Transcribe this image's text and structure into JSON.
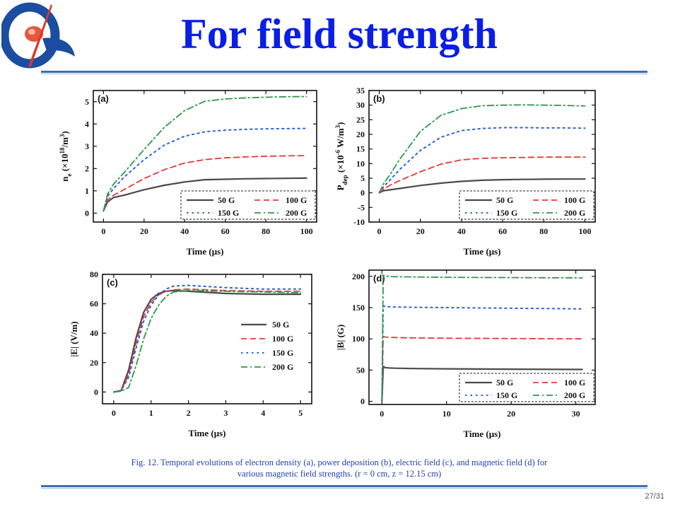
{
  "slide": {
    "title": "For field strength",
    "caption_line1": "Fig. 12. Temporal evolutions of electron density (a), power deposition (b), electric field (c), and magnetic field (d) for",
    "caption_line2": "various magnetic field strengths. (r = 0 cm, z = 12.15 cm)",
    "page_number": "27/31"
  },
  "colors": {
    "title": "#0a1ee6",
    "rule": "#3a6fb5",
    "caption": "#2540a8",
    "series_50G": "#4a4a4a",
    "series_100G": "#e63a3a",
    "series_150G": "#2e63d6",
    "series_200G": "#2a9a4a"
  },
  "chart_data": [
    {
      "id": "a",
      "panel_label": "(a)",
      "type": "line",
      "xlabel": "Time  (μs)",
      "ylabel": "n_e (×10^18/m^3)",
      "ylabel_parts": [
        "n",
        "e",
        " (×10",
        "18",
        "/m",
        "3",
        ")"
      ],
      "xlim": [
        -5,
        105
      ],
      "ylim": [
        -0.4,
        5.5
      ],
      "xticks": [
        0,
        20,
        40,
        60,
        80,
        100
      ],
      "yticks": [
        0,
        1,
        2,
        3,
        4,
        5
      ],
      "legend": [
        "50 G",
        "100 G",
        "150 G",
        "200 G"
      ],
      "legend_position": "bottom-right",
      "series": [
        {
          "name": "50 G",
          "x": [
            0,
            2,
            5,
            10,
            20,
            30,
            40,
            50,
            60,
            70,
            80,
            90,
            100
          ],
          "values": [
            0.1,
            0.5,
            0.7,
            0.8,
            1.05,
            1.25,
            1.4,
            1.5,
            1.52,
            1.54,
            1.55,
            1.56,
            1.57
          ]
        },
        {
          "name": "100 G",
          "x": [
            0,
            2,
            5,
            10,
            20,
            30,
            40,
            50,
            60,
            70,
            80,
            90,
            100
          ],
          "values": [
            0.1,
            0.6,
            0.8,
            1.05,
            1.55,
            1.95,
            2.25,
            2.4,
            2.48,
            2.52,
            2.55,
            2.57,
            2.58
          ]
        },
        {
          "name": "150 G",
          "x": [
            0,
            2,
            5,
            10,
            20,
            30,
            40,
            50,
            60,
            70,
            80,
            90,
            100
          ],
          "values": [
            0.1,
            0.75,
            1.1,
            1.6,
            2.4,
            3.05,
            3.45,
            3.65,
            3.72,
            3.76,
            3.78,
            3.79,
            3.8
          ]
        },
        {
          "name": "200 G",
          "x": [
            0,
            2,
            5,
            10,
            20,
            30,
            40,
            50,
            60,
            70,
            80,
            90,
            100
          ],
          "values": [
            0.1,
            0.85,
            1.3,
            1.8,
            2.85,
            3.85,
            4.6,
            5.02,
            5.12,
            5.17,
            5.2,
            5.22,
            5.23
          ]
        }
      ]
    },
    {
      "id": "b",
      "panel_label": "(b)",
      "type": "line",
      "xlabel": "Time  (μs)",
      "ylabel": "P_dep (×10^-6 W/m^3)",
      "ylabel_parts": [
        "P",
        "dep",
        " (×10",
        "-6",
        " W/m",
        "3",
        ")"
      ],
      "xlim": [
        -5,
        105
      ],
      "ylim": [
        -10,
        35
      ],
      "xticks": [
        0,
        20,
        40,
        60,
        80,
        100
      ],
      "yticks": [
        -10,
        -5,
        0,
        5,
        10,
        15,
        20,
        25,
        30,
        35
      ],
      "legend": [
        "50 G",
        "100 G",
        "150 G",
        "200 G"
      ],
      "legend_position": "bottom-right",
      "series": [
        {
          "name": "50 G",
          "x": [
            0,
            2,
            5,
            10,
            20,
            30,
            40,
            50,
            60,
            70,
            80,
            90,
            100
          ],
          "values": [
            0,
            0.7,
            1.0,
            1.5,
            2.5,
            3.3,
            3.9,
            4.3,
            4.5,
            4.6,
            4.65,
            4.7,
            4.7
          ]
        },
        {
          "name": "100 G",
          "x": [
            0,
            2,
            5,
            10,
            20,
            30,
            40,
            50,
            60,
            70,
            80,
            90,
            100
          ],
          "values": [
            0,
            1.2,
            2.5,
            4.2,
            7.2,
            9.8,
            11.3,
            11.8,
            12.0,
            12.1,
            12.2,
            12.2,
            12.2
          ]
        },
        {
          "name": "150 G",
          "x": [
            0,
            2,
            5,
            10,
            20,
            30,
            40,
            50,
            60,
            70,
            80,
            90,
            100
          ],
          "values": [
            0,
            2.0,
            4.2,
            8.0,
            14.5,
            19.0,
            21.3,
            22.0,
            22.3,
            22.3,
            22.2,
            22.2,
            22.1
          ]
        },
        {
          "name": "200 G",
          "x": [
            0,
            2,
            5,
            10,
            20,
            30,
            40,
            50,
            60,
            70,
            80,
            90,
            100
          ],
          "values": [
            0,
            3.0,
            6.0,
            11.5,
            21.0,
            26.5,
            28.8,
            29.8,
            30.0,
            30.1,
            30.0,
            29.9,
            29.7
          ]
        }
      ]
    },
    {
      "id": "c",
      "panel_label": "(c)",
      "type": "line",
      "xlabel": "Time  (μs)",
      "ylabel": "|E|  (V/m)",
      "ylabel_parts": [
        "|E|  (V/m)"
      ],
      "xlim": [
        -0.3,
        5.3
      ],
      "ylim": [
        -8,
        80
      ],
      "xticks": [
        0,
        1,
        2,
        3,
        4,
        5
      ],
      "yticks": [
        0,
        20,
        40,
        60,
        80
      ],
      "legend": [
        "50 G",
        "100 G",
        "150 G",
        "200 G"
      ],
      "legend_position": "right",
      "series": [
        {
          "name": "50 G",
          "x": [
            0,
            0.2,
            0.4,
            0.6,
            0.8,
            1.0,
            1.2,
            1.4,
            1.6,
            2.0,
            3.0,
            4.0,
            5.0
          ],
          "values": [
            0,
            1,
            15,
            37,
            54,
            63,
            67,
            68.5,
            69,
            68.5,
            67,
            66.5,
            66.5
          ]
        },
        {
          "name": "100 G",
          "x": [
            0,
            0.2,
            0.4,
            0.6,
            0.8,
            1.0,
            1.2,
            1.4,
            1.6,
            2.0,
            3.0,
            4.0,
            5.0
          ],
          "values": [
            0,
            1,
            12,
            33,
            51,
            61,
            66,
            68.5,
            69.5,
            70,
            69,
            68.5,
            68.5
          ]
        },
        {
          "name": "150 G",
          "x": [
            0,
            0.2,
            0.4,
            0.6,
            0.8,
            1.0,
            1.2,
            1.4,
            1.6,
            2.0,
            3.0,
            4.0,
            5.0
          ],
          "values": [
            0,
            1,
            10,
            30,
            48,
            59,
            66,
            70,
            72,
            72.5,
            71,
            70,
            70
          ]
        },
        {
          "name": "200 G",
          "x": [
            0,
            0.2,
            0.4,
            0.6,
            0.8,
            1.0,
            1.2,
            1.4,
            1.6,
            2.0,
            3.0,
            4.0,
            5.0
          ],
          "values": [
            0,
            0.5,
            3,
            18,
            36,
            50,
            59,
            65,
            68,
            69,
            68.5,
            68,
            67.5
          ]
        }
      ]
    },
    {
      "id": "d",
      "panel_label": "(d)",
      "type": "line",
      "xlabel": "Time  (μs)",
      "ylabel": "|B|  (G)",
      "ylabel_parts": [
        "|B|  (G)"
      ],
      "xlim": [
        -2,
        33
      ],
      "ylim": [
        -5,
        210
      ],
      "xticks": [
        0,
        10,
        20,
        30
      ],
      "yticks": [
        0,
        50,
        100,
        150,
        200
      ],
      "legend": [
        "50 G",
        "100 G",
        "150 G",
        "200 G"
      ],
      "legend_position": "bottom-right",
      "series": [
        {
          "name": "50 G",
          "x": [
            0,
            0.2,
            0.5,
            1,
            2,
            5,
            10,
            20,
            31
          ],
          "values": [
            0,
            56,
            54,
            53.5,
            53,
            52.5,
            52,
            51.5,
            51
          ]
        },
        {
          "name": "100 G",
          "x": [
            0,
            0.2,
            0.5,
            1,
            2,
            5,
            10,
            20,
            31
          ],
          "values": [
            0,
            104,
            103,
            102.5,
            102,
            101.5,
            101,
            100.5,
            100
          ]
        },
        {
          "name": "150 G",
          "x": [
            0,
            0.2,
            0.5,
            1,
            2,
            5,
            10,
            20,
            31
          ],
          "values": [
            0,
            153,
            152,
            151.5,
            151,
            150.5,
            150,
            149,
            148
          ]
        },
        {
          "name": "200 G",
          "x": [
            0,
            0.2,
            0.5,
            1,
            2,
            5,
            10,
            20,
            31
          ],
          "values": [
            0,
            202,
            201,
            200,
            199.5,
            199,
            198.5,
            198,
            197.5
          ]
        }
      ]
    }
  ]
}
